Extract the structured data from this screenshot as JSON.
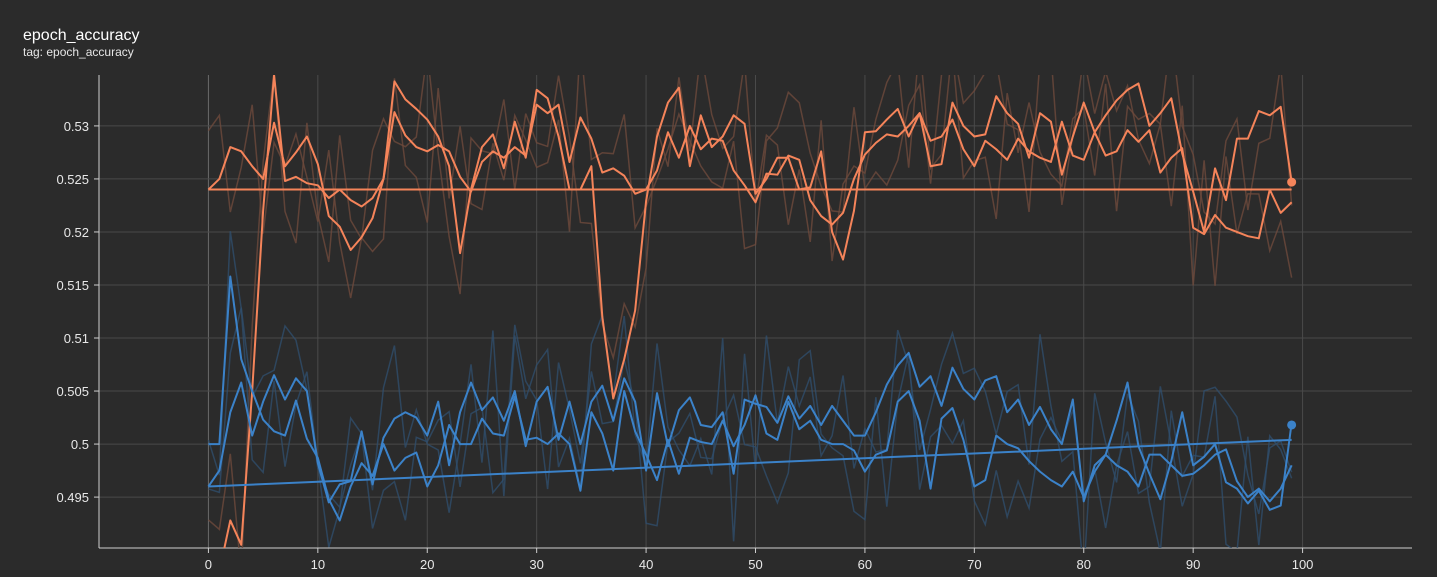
{
  "header": {
    "title": "epoch_accuracy",
    "subtitle": "tag: epoch_accuracy"
  },
  "colors": {
    "background": "#2b2b2b",
    "grid": "#4a4a4a",
    "orange": "#f5845a",
    "blue": "#3b82c9",
    "orange_faint": "#6e4a3c",
    "blue_faint": "#2f4e6c"
  },
  "chart_data": {
    "type": "line",
    "title": "epoch_accuracy",
    "xlabel": "",
    "ylabel": "",
    "xlim": [
      -10,
      110
    ],
    "ylim": [
      0.4902,
      0.5348
    ],
    "grid": true,
    "legend": "none",
    "x_ticks": [
      0,
      10,
      20,
      30,
      40,
      50,
      60,
      70,
      80,
      90,
      100
    ],
    "y_ticks": [
      0.495,
      0.5,
      0.505,
      0.51,
      0.515,
      0.52,
      0.525,
      0.53
    ],
    "x_tick_labels": [
      "0",
      "10",
      "20",
      "30",
      "40",
      "50",
      "60",
      "70",
      "80",
      "90",
      "100"
    ],
    "y_tick_labels": [
      "0.495",
      "0.5",
      "0.505",
      "0.51",
      "0.515",
      "0.52",
      "0.525",
      "0.53"
    ],
    "series": [
      {
        "color": "#f5845a",
        "x": [
          0,
          1,
          2,
          3,
          4,
          5,
          6,
          7,
          8,
          9,
          10,
          11,
          12,
          13,
          14,
          15,
          16,
          17,
          18,
          19,
          20,
          21,
          22,
          23,
          24,
          25,
          26,
          27,
          28,
          29,
          30,
          31,
          32,
          33,
          34,
          35,
          36,
          37,
          38,
          39,
          40,
          41,
          42,
          43,
          44,
          45,
          46,
          47,
          48,
          49,
          50,
          51,
          52,
          53,
          54,
          55,
          56,
          57,
          58,
          59,
          60,
          61,
          62,
          63,
          64,
          65,
          66,
          67,
          68,
          69,
          70,
          71,
          72,
          73,
          74,
          75,
          76,
          77,
          78,
          79,
          80,
          81,
          82,
          83,
          84,
          85,
          86,
          87,
          88,
          89,
          90,
          91,
          92,
          93,
          94,
          95,
          96,
          97,
          98,
          99
        ],
        "y": [
          0.524,
          0.525,
          0.528,
          0.5276,
          0.5262,
          0.525,
          0.5303,
          0.5262,
          0.5275,
          0.529,
          0.5264,
          0.5215,
          0.5205,
          0.5183,
          0.5195,
          0.5213,
          0.525,
          0.5313,
          0.5291,
          0.528,
          0.5276,
          0.5282,
          0.5276,
          0.5252,
          0.5238,
          0.5266,
          0.5276,
          0.527,
          0.528,
          0.5272,
          0.532,
          0.5312,
          0.532,
          0.5266,
          0.5308,
          0.5288,
          0.5256,
          0.526,
          0.5253,
          0.5236,
          0.524,
          0.5258,
          0.5294,
          0.527,
          0.53,
          0.5278,
          0.5288,
          0.5286,
          0.5258,
          0.5244,
          0.5228,
          0.5255,
          0.5254,
          0.5272,
          0.5268,
          0.523,
          0.5215,
          0.5207,
          0.5218,
          0.525,
          0.5273,
          0.5284,
          0.5292,
          0.529,
          0.53,
          0.5312,
          0.5286,
          0.529,
          0.5306,
          0.5278,
          0.5262,
          0.5286,
          0.5278,
          0.5268,
          0.5288,
          0.5276,
          0.527,
          0.5266,
          0.5304,
          0.5272,
          0.5268,
          0.5294,
          0.5272,
          0.5276,
          0.5296,
          0.5285,
          0.5296,
          0.5256,
          0.527,
          0.5279,
          0.5204,
          0.5198,
          0.5216,
          0.5204,
          0.52,
          0.5196,
          0.5194,
          0.524,
          0.5218,
          0.5228
        ]
      },
      {
        "color": "#f5845a",
        "x": [
          0,
          1,
          2,
          3,
          4,
          5,
          6,
          7,
          8,
          9,
          10,
          11,
          12,
          13,
          14,
          15,
          16,
          17,
          18,
          19,
          20,
          21,
          22,
          23,
          24,
          25,
          26,
          27,
          28,
          29,
          30,
          31,
          32,
          33,
          34,
          35,
          36,
          37,
          38,
          39,
          40,
          41,
          42,
          43,
          44,
          45,
          46,
          47,
          48,
          49,
          50,
          51,
          52,
          53,
          54,
          55,
          56,
          57,
          58,
          59,
          60,
          61,
          62,
          63,
          64,
          65,
          66,
          67,
          68,
          69,
          70,
          71,
          72,
          73,
          74,
          75,
          76,
          77,
          78,
          79,
          80,
          81,
          82,
          83,
          84,
          85,
          86,
          87,
          88,
          89,
          90,
          91,
          92,
          93,
          94,
          95,
          96,
          97,
          98,
          99
        ],
        "y": [
          0.488,
          0.488,
          0.4928,
          0.4905,
          0.505,
          0.522,
          0.5348,
          0.5248,
          0.5252,
          0.5246,
          0.5244,
          0.5232,
          0.524,
          0.523,
          0.5224,
          0.5232,
          0.525,
          0.5342,
          0.5325,
          0.5316,
          0.5306,
          0.529,
          0.5262,
          0.518,
          0.524,
          0.528,
          0.5292,
          0.526,
          0.5304,
          0.527,
          0.5334,
          0.5326,
          0.529,
          0.524,
          0.524,
          0.5262,
          0.512,
          0.5043,
          0.508,
          0.5126,
          0.5229,
          0.529,
          0.5322,
          0.5336,
          0.5262,
          0.531,
          0.528,
          0.529,
          0.531,
          0.5302,
          0.5236,
          0.525,
          0.527,
          0.527,
          0.524,
          0.5242,
          0.5276,
          0.52,
          0.5174,
          0.522,
          0.5294,
          0.5295,
          0.5306,
          0.5316,
          0.529,
          0.5312,
          0.5262,
          0.5264,
          0.5322,
          0.53,
          0.529,
          0.5292,
          0.5328,
          0.5312,
          0.5302,
          0.527,
          0.5312,
          0.5304,
          0.5254,
          0.529,
          0.5322,
          0.5294,
          0.531,
          0.5324,
          0.5334,
          0.534,
          0.53,
          0.5312,
          0.5326,
          0.5274,
          0.5238,
          0.52,
          0.526,
          0.523,
          0.5288,
          0.5288,
          0.5314,
          0.531,
          0.5318,
          0.5247
        ]
      },
      {
        "color": "#f5845a",
        "x": [
          0,
          99
        ],
        "y": [
          0.524,
          0.524
        ]
      },
      {
        "color": "#3b82c9",
        "x": [
          0,
          1,
          2,
          3,
          4,
          5,
          6,
          7,
          8,
          9,
          10,
          11,
          12,
          13,
          14,
          15,
          16,
          17,
          18,
          19,
          20,
          21,
          22,
          23,
          24,
          25,
          26,
          27,
          28,
          29,
          30,
          31,
          32,
          33,
          34,
          35,
          36,
          37,
          38,
          39,
          40,
          41,
          42,
          43,
          44,
          45,
          46,
          47,
          48,
          49,
          50,
          51,
          52,
          53,
          54,
          55,
          56,
          57,
          58,
          59,
          60,
          61,
          62,
          63,
          64,
          65,
          66,
          67,
          68,
          69,
          70,
          71,
          72,
          73,
          74,
          75,
          76,
          77,
          78,
          79,
          80,
          81,
          82,
          83,
          84,
          85,
          86,
          87,
          88,
          89,
          90,
          91,
          92,
          93,
          94,
          95,
          96,
          97,
          98,
          99
        ],
        "y": [
          0.5,
          0.5,
          0.5158,
          0.508,
          0.505,
          0.5023,
          0.5012,
          0.5008,
          0.5041,
          0.5005,
          0.4987,
          0.4948,
          0.4928,
          0.496,
          0.4982,
          0.497,
          0.5,
          0.4975,
          0.4987,
          0.4992,
          0.496,
          0.498,
          0.5018,
          0.5,
          0.5,
          0.5024,
          0.501,
          0.5008,
          0.5045,
          0.5004,
          0.5006,
          0.5,
          0.501,
          0.5,
          0.4956,
          0.503,
          0.501,
          0.4975,
          0.505,
          0.5012,
          0.499,
          0.4966,
          0.5004,
          0.4972,
          0.5006,
          0.5002,
          0.5,
          0.5022,
          0.4998,
          0.5018,
          0.5046,
          0.501,
          0.5004,
          0.504,
          0.5014,
          0.5022,
          0.5004,
          0.5,
          0.5,
          0.4994,
          0.4974,
          0.499,
          0.4994,
          0.504,
          0.505,
          0.5022,
          0.4958,
          0.5024,
          0.5034,
          0.5004,
          0.496,
          0.4966,
          0.5008,
          0.5,
          0.4996,
          0.4984,
          0.4974,
          0.4966,
          0.496,
          0.4974,
          0.495,
          0.4974,
          0.499,
          0.498,
          0.4974,
          0.496,
          0.499,
          0.499,
          0.498,
          0.497,
          0.4972,
          0.498,
          0.499,
          0.4995,
          0.4965,
          0.495,
          0.4958,
          0.4946,
          0.4958,
          0.498
        ]
      },
      {
        "color": "#3b82c9",
        "x": [
          0,
          1,
          2,
          3,
          4,
          5,
          6,
          7,
          8,
          9,
          10,
          11,
          12,
          13,
          14,
          15,
          16,
          17,
          18,
          19,
          20,
          21,
          22,
          23,
          24,
          25,
          26,
          27,
          28,
          29,
          30,
          31,
          32,
          33,
          34,
          35,
          36,
          37,
          38,
          39,
          40,
          41,
          42,
          43,
          44,
          45,
          46,
          47,
          48,
          49,
          50,
          51,
          52,
          53,
          54,
          55,
          56,
          57,
          58,
          59,
          60,
          61,
          62,
          63,
          64,
          65,
          66,
          67,
          68,
          69,
          70,
          71,
          72,
          73,
          74,
          75,
          76,
          77,
          78,
          79,
          80,
          81,
          82,
          83,
          84,
          85,
          86,
          87,
          88,
          89,
          90,
          91,
          92,
          93,
          94,
          95,
          96,
          97,
          98,
          99
        ],
        "y": [
          0.496,
          0.4975,
          0.503,
          0.5058,
          0.5008,
          0.504,
          0.5065,
          0.5042,
          0.5062,
          0.505,
          0.4982,
          0.4945,
          0.4962,
          0.4965,
          0.5012,
          0.4962,
          0.5006,
          0.5024,
          0.503,
          0.5025,
          0.5008,
          0.504,
          0.498,
          0.503,
          0.5058,
          0.5032,
          0.5044,
          0.5022,
          0.505,
          0.4998,
          0.504,
          0.5054,
          0.5004,
          0.504,
          0.5,
          0.504,
          0.5055,
          0.5022,
          0.5062,
          0.504,
          0.4975,
          0.5048,
          0.4998,
          0.5032,
          0.5044,
          0.5018,
          0.5016,
          0.503,
          0.4972,
          0.5042,
          0.5038,
          0.5035,
          0.502,
          0.5045,
          0.5024,
          0.5036,
          0.5018,
          0.5036,
          0.5022,
          0.5008,
          0.5008,
          0.503,
          0.5056,
          0.5074,
          0.5086,
          0.5054,
          0.5064,
          0.5036,
          0.5072,
          0.5052,
          0.5042,
          0.506,
          0.5064,
          0.503,
          0.5042,
          0.5018,
          0.5035,
          0.5014,
          0.5,
          0.5042,
          0.4946,
          0.498,
          0.499,
          0.5022,
          0.5058,
          0.4998,
          0.4972,
          0.4948,
          0.4984,
          0.503,
          0.498,
          0.4988,
          0.5,
          0.4964,
          0.4958,
          0.4944,
          0.4956,
          0.4938,
          0.4942,
          0.502
        ]
      },
      {
        "color": "#3b82c9",
        "x": [
          0,
          99
        ],
        "y": [
          0.496,
          0.5004
        ]
      }
    ],
    "end_markers": [
      {
        "color": "#f5845a",
        "x": 99,
        "y": 0.5247
      },
      {
        "color": "#3b82c9",
        "x": 99,
        "y": 0.5018
      }
    ]
  }
}
